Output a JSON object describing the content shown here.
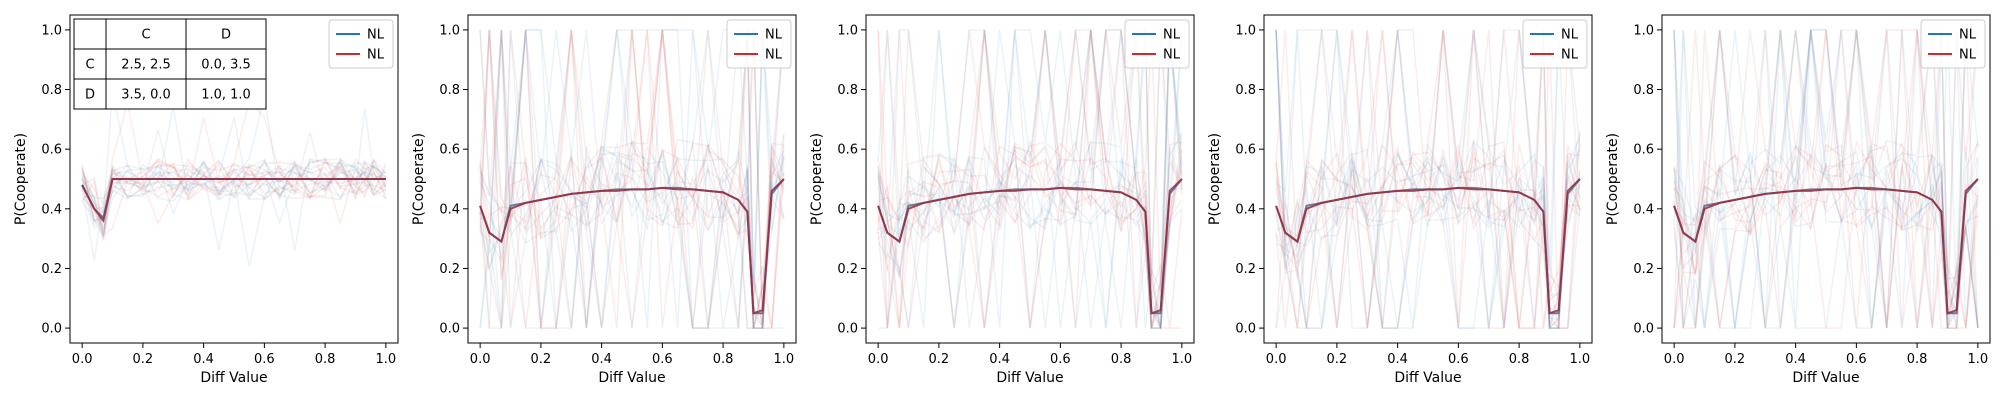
{
  "chart_data": [
    {
      "type": "line",
      "xlabel": "Diff Value",
      "ylabel": "P(Cooperate)",
      "xlim": [
        -0.04,
        1.04
      ],
      "ylim": [
        -0.05,
        1.05
      ],
      "xticks": [
        "0.0",
        "0.2",
        "0.4",
        "0.6",
        "0.8",
        "1.0"
      ],
      "yticks": [
        "0.0",
        "0.2",
        "0.4",
        "0.6",
        "0.8",
        "1.0"
      ],
      "legend": {
        "placement": "top-right",
        "entries": [
          "NL",
          "NL"
        ]
      },
      "payoff_table": {
        "placement": "top-left",
        "header": [
          "",
          "C",
          "D"
        ],
        "rows": [
          [
            "C",
            "2.5, 2.5",
            "0.0, 3.5"
          ],
          [
            "D",
            "3.5, 0.0",
            "1.0, 1.0"
          ]
        ]
      },
      "x": [
        0.0,
        0.04,
        0.07,
        0.1,
        0.15,
        0.2,
        0.25,
        0.3,
        0.35,
        0.4,
        0.45,
        0.5,
        0.55,
        0.6,
        0.65,
        0.7,
        0.75,
        0.8,
        0.85,
        0.9,
        0.93,
        0.96,
        1.0
      ],
      "series": [
        {
          "color": "#1f77b4",
          "values": [
            0.48,
            0.4,
            0.37,
            0.5,
            0.5,
            0.5,
            0.5,
            0.5,
            0.5,
            0.5,
            0.5,
            0.5,
            0.5,
            0.5,
            0.5,
            0.5,
            0.5,
            0.5,
            0.5,
            0.5,
            0.5,
            0.5,
            0.5
          ]
        },
        {
          "color": "#d62728",
          "values": [
            0.48,
            0.4,
            0.36,
            0.5,
            0.5,
            0.5,
            0.5,
            0.5,
            0.5,
            0.5,
            0.5,
            0.5,
            0.5,
            0.5,
            0.5,
            0.5,
            0.5,
            0.5,
            0.5,
            0.5,
            0.5,
            0.5,
            0.5
          ]
        }
      ]
    },
    {
      "type": "line",
      "xlabel": "Diff Value",
      "ylabel": "P(Cooperate)",
      "xlim": [
        -0.04,
        1.04
      ],
      "ylim": [
        -0.05,
        1.05
      ],
      "xticks": [
        "0.0",
        "0.2",
        "0.4",
        "0.6",
        "0.8",
        "1.0"
      ],
      "yticks": [
        "0.0",
        "0.2",
        "0.4",
        "0.6",
        "0.8",
        "1.0"
      ],
      "legend": {
        "placement": "top-right",
        "entries": [
          "NL",
          "NL"
        ]
      },
      "x": [
        0.0,
        0.03,
        0.07,
        0.1,
        0.15,
        0.2,
        0.25,
        0.3,
        0.35,
        0.4,
        0.45,
        0.5,
        0.55,
        0.6,
        0.65,
        0.7,
        0.75,
        0.8,
        0.85,
        0.88,
        0.9,
        0.93,
        0.96,
        1.0
      ],
      "series": [
        {
          "color": "#1f77b4",
          "values": [
            0.41,
            0.32,
            0.29,
            0.41,
            0.42,
            0.43,
            0.44,
            0.45,
            0.455,
            0.46,
            0.465,
            0.465,
            0.465,
            0.47,
            0.47,
            0.465,
            0.46,
            0.455,
            0.43,
            0.39,
            0.05,
            0.05,
            0.45,
            0.5
          ]
        },
        {
          "color": "#d62728",
          "values": [
            0.41,
            0.32,
            0.29,
            0.4,
            0.42,
            0.43,
            0.44,
            0.45,
            0.455,
            0.46,
            0.46,
            0.465,
            0.465,
            0.47,
            0.465,
            0.465,
            0.46,
            0.455,
            0.43,
            0.39,
            0.05,
            0.06,
            0.46,
            0.5
          ]
        }
      ]
    },
    {
      "type": "line",
      "xlabel": "Diff Value",
      "ylabel": "P(Cooperate)",
      "xlim": [
        -0.04,
        1.04
      ],
      "ylim": [
        -0.05,
        1.05
      ],
      "xticks": [
        "0.0",
        "0.2",
        "0.4",
        "0.6",
        "0.8",
        "1.0"
      ],
      "yticks": [
        "0.0",
        "0.2",
        "0.4",
        "0.6",
        "0.8",
        "1.0"
      ],
      "legend": {
        "placement": "top-right",
        "entries": [
          "NL",
          "NL"
        ]
      },
      "x": [
        0.0,
        0.03,
        0.07,
        0.1,
        0.15,
        0.2,
        0.25,
        0.3,
        0.35,
        0.4,
        0.45,
        0.5,
        0.55,
        0.6,
        0.65,
        0.7,
        0.75,
        0.8,
        0.85,
        0.88,
        0.9,
        0.93,
        0.96,
        1.0
      ],
      "series": [
        {
          "color": "#1f77b4",
          "values": [
            0.41,
            0.32,
            0.29,
            0.41,
            0.42,
            0.43,
            0.44,
            0.45,
            0.455,
            0.46,
            0.465,
            0.465,
            0.465,
            0.47,
            0.47,
            0.465,
            0.46,
            0.455,
            0.43,
            0.39,
            0.05,
            0.05,
            0.45,
            0.5
          ]
        },
        {
          "color": "#d62728",
          "values": [
            0.41,
            0.32,
            0.29,
            0.4,
            0.42,
            0.43,
            0.44,
            0.45,
            0.455,
            0.46,
            0.46,
            0.465,
            0.465,
            0.47,
            0.465,
            0.465,
            0.46,
            0.455,
            0.43,
            0.39,
            0.05,
            0.06,
            0.46,
            0.5
          ]
        }
      ]
    },
    {
      "type": "line",
      "xlabel": "Diff Value",
      "ylabel": "P(Cooperate)",
      "xlim": [
        -0.04,
        1.04
      ],
      "ylim": [
        -0.05,
        1.05
      ],
      "xticks": [
        "0.0",
        "0.2",
        "0.4",
        "0.6",
        "0.8",
        "1.0"
      ],
      "yticks": [
        "0.0",
        "0.2",
        "0.4",
        "0.6",
        "0.8",
        "1.0"
      ],
      "legend": {
        "placement": "top-right",
        "entries": [
          "NL",
          "NL"
        ]
      },
      "x": [
        0.0,
        0.03,
        0.07,
        0.1,
        0.15,
        0.2,
        0.25,
        0.3,
        0.35,
        0.4,
        0.45,
        0.5,
        0.55,
        0.6,
        0.65,
        0.7,
        0.75,
        0.8,
        0.85,
        0.88,
        0.9,
        0.93,
        0.96,
        1.0
      ],
      "series": [
        {
          "color": "#1f77b4",
          "values": [
            0.41,
            0.32,
            0.29,
            0.41,
            0.42,
            0.43,
            0.44,
            0.45,
            0.455,
            0.46,
            0.465,
            0.465,
            0.465,
            0.47,
            0.47,
            0.465,
            0.46,
            0.455,
            0.43,
            0.39,
            0.05,
            0.05,
            0.45,
            0.5
          ]
        },
        {
          "color": "#d62728",
          "values": [
            0.41,
            0.32,
            0.29,
            0.4,
            0.42,
            0.43,
            0.44,
            0.45,
            0.455,
            0.46,
            0.46,
            0.465,
            0.465,
            0.47,
            0.465,
            0.465,
            0.46,
            0.455,
            0.43,
            0.39,
            0.05,
            0.06,
            0.46,
            0.5
          ]
        }
      ]
    },
    {
      "type": "line",
      "xlabel": "Diff Value",
      "ylabel": "P(Cooperate)",
      "xlim": [
        -0.04,
        1.04
      ],
      "ylim": [
        -0.05,
        1.05
      ],
      "xticks": [
        "0.0",
        "0.2",
        "0.4",
        "0.6",
        "0.8",
        "1.0"
      ],
      "yticks": [
        "0.0",
        "0.2",
        "0.4",
        "0.6",
        "0.8",
        "1.0"
      ],
      "legend": {
        "placement": "top-right",
        "entries": [
          "NL",
          "NL"
        ]
      },
      "x": [
        0.0,
        0.03,
        0.07,
        0.1,
        0.15,
        0.2,
        0.25,
        0.3,
        0.35,
        0.4,
        0.45,
        0.5,
        0.55,
        0.6,
        0.65,
        0.7,
        0.75,
        0.8,
        0.85,
        0.88,
        0.9,
        0.93,
        0.96,
        1.0
      ],
      "series": [
        {
          "color": "#1f77b4",
          "values": [
            0.41,
            0.32,
            0.29,
            0.41,
            0.42,
            0.43,
            0.44,
            0.45,
            0.455,
            0.46,
            0.465,
            0.465,
            0.465,
            0.47,
            0.47,
            0.465,
            0.46,
            0.455,
            0.43,
            0.39,
            0.05,
            0.05,
            0.45,
            0.5
          ]
        },
        {
          "color": "#d62728",
          "values": [
            0.41,
            0.32,
            0.29,
            0.4,
            0.42,
            0.43,
            0.44,
            0.45,
            0.455,
            0.46,
            0.46,
            0.465,
            0.465,
            0.47,
            0.465,
            0.465,
            0.46,
            0.455,
            0.43,
            0.39,
            0.05,
            0.06,
            0.46,
            0.5
          ]
        }
      ]
    }
  ]
}
